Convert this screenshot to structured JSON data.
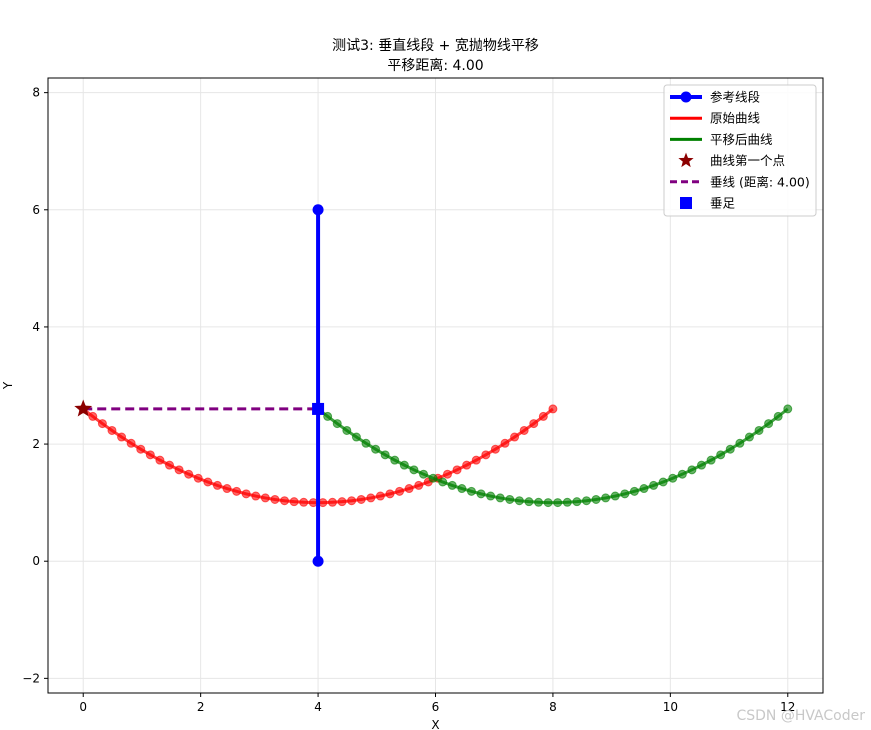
{
  "chart_data": {
    "type": "line",
    "title": "测试3: 垂直线段 + 宽抛物线平移",
    "subtitle": "平移距离: 4.00",
    "xlabel": "X",
    "ylabel": "Y",
    "xlim": [
      -0.6,
      12.6
    ],
    "ylim": [
      -2.25,
      8.25
    ],
    "xticks": [
      0,
      2,
      4,
      6,
      8,
      10,
      12
    ],
    "yticks": [
      -2,
      0,
      2,
      4,
      6,
      8
    ],
    "grid": true,
    "legend_position": "top-right",
    "series": [
      {
        "name": "参考线段",
        "kind": "line-marker",
        "color": "#0000ff",
        "points": [
          [
            4,
            0
          ],
          [
            4,
            6
          ]
        ]
      },
      {
        "name": "原始曲线",
        "kind": "parabola",
        "color": "#ff0000",
        "x_start": 0,
        "x_end": 8,
        "n_points": 50,
        "vertex": [
          4,
          1
        ],
        "a": 0.1,
        "points": [
          [
            0,
            2.6
          ],
          [
            2,
            1.4
          ],
          [
            4,
            1.0
          ],
          [
            6,
            1.4
          ],
          [
            8,
            2.6
          ]
        ]
      },
      {
        "name": "平移后曲线",
        "kind": "parabola",
        "color": "#008000",
        "x_start": 4,
        "x_end": 12,
        "n_points": 50,
        "vertex": [
          8,
          1
        ],
        "a": 0.1,
        "points": [
          [
            4,
            2.6
          ],
          [
            6,
            1.4
          ],
          [
            8,
            1.0
          ],
          [
            10,
            1.4
          ],
          [
            12,
            2.6
          ]
        ]
      },
      {
        "name": "曲线第一个点",
        "kind": "star",
        "color": "#8b0000",
        "points": [
          [
            0,
            2.6
          ]
        ]
      },
      {
        "name": "垂线 (距离: 4.00)",
        "kind": "dashed",
        "color": "#800080",
        "points": [
          [
            0,
            2.6
          ],
          [
            4,
            2.6
          ]
        ]
      },
      {
        "name": "垂足",
        "kind": "square",
        "color": "#0000ff",
        "points": [
          [
            4,
            2.6
          ]
        ]
      }
    ]
  },
  "watermark": "CSDN @HVACoder"
}
